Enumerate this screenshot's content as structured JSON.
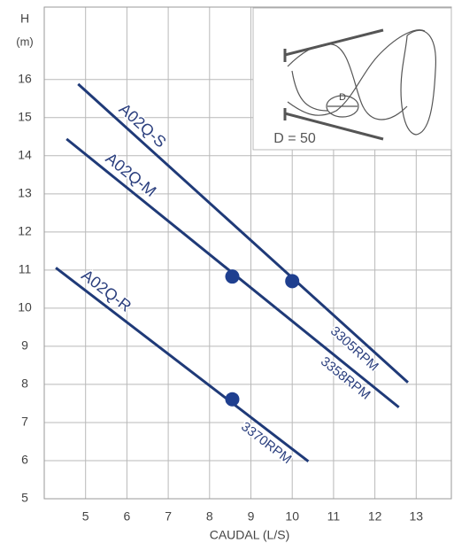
{
  "chart_data": {
    "type": "line",
    "y_label_top": "H",
    "y_label_unit": "(m)",
    "x_label": "CAUDAL (L/S)",
    "xlim": [
      4,
      13.85
    ],
    "ylim": [
      5,
      17.9
    ],
    "xticks": [
      5,
      6,
      7,
      8,
      9,
      10,
      11,
      12,
      13
    ],
    "yticks": [
      5,
      6,
      7,
      8,
      9,
      10,
      11,
      12,
      13,
      14,
      15,
      16
    ],
    "grid": true,
    "series": [
      {
        "name": "A02Q-S",
        "speed": "3305RPM",
        "color": "#1f3a78",
        "x": [
          4.82,
          12.8
        ],
        "values": [
          15.88,
          8.05
        ],
        "marker": {
          "x": 10.0,
          "y": 10.71
        }
      },
      {
        "name": "A02Q-M",
        "speed": "3358RPM",
        "color": "#1f3a78",
        "x": [
          4.54,
          12.58
        ],
        "values": [
          14.44,
          7.4
        ],
        "marker": {
          "x": 8.55,
          "y": 10.83
        }
      },
      {
        "name": "A02Q-R",
        "speed": "3370RPM",
        "color": "#1f3a78",
        "x": [
          4.28,
          10.39
        ],
        "values": [
          11.06,
          5.98
        ],
        "marker": {
          "x": 8.55,
          "y": 7.61
        }
      }
    ],
    "inset": {
      "diameter_label": "D",
      "caption": "D = 50"
    }
  }
}
